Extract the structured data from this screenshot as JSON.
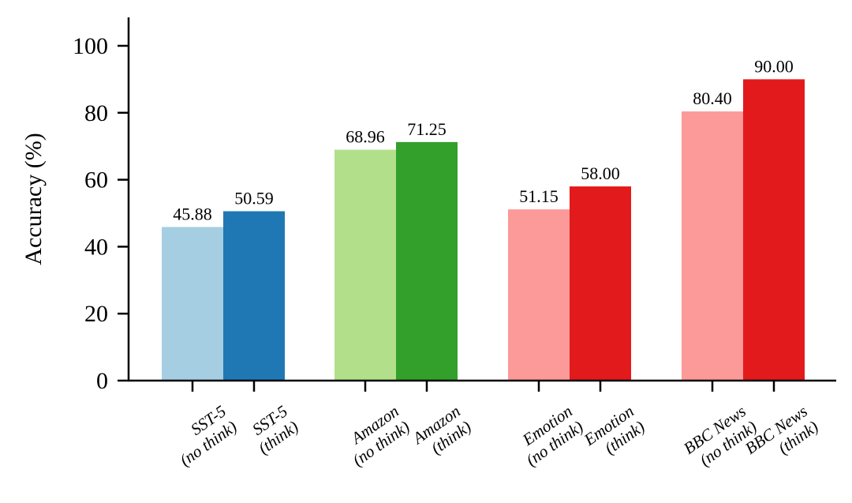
{
  "chart_data": {
    "type": "bar",
    "title": "",
    "xlabel": "",
    "ylabel": "Accuracy (%)",
    "ylim": [
      0,
      105
    ],
    "yticks": [
      0,
      20,
      40,
      60,
      80,
      100
    ],
    "grid": false,
    "legend": "none",
    "bars": [
      {
        "label_line1": "SST-5",
        "label_line2": "(no think)",
        "value": 45.88,
        "value_label": "45.88",
        "color": "#a6cee3"
      },
      {
        "label_line1": "SST-5",
        "label_line2": "(think)",
        "value": 50.59,
        "value_label": "50.59",
        "color": "#1f78b4"
      },
      {
        "label_line1": "Amazon",
        "label_line2": "(no think)",
        "value": 68.96,
        "value_label": "68.96",
        "color": "#b2df8a"
      },
      {
        "label_line1": "Amazon",
        "label_line2": "(think)",
        "value": 71.25,
        "value_label": "71.25",
        "color": "#33a02c"
      },
      {
        "label_line1": "Emotion",
        "label_line2": "(no think)",
        "value": 51.15,
        "value_label": "51.15",
        "color": "#fb9a99"
      },
      {
        "label_line1": "Emotion",
        "label_line2": "(think)",
        "value": 58.0,
        "value_label": "58.00",
        "color": "#e31a1c"
      },
      {
        "label_line1": "BBC News",
        "label_line2": "(no think)",
        "value": 80.4,
        "value_label": "80.40",
        "color": "#fb9a99"
      },
      {
        "label_line1": "BBC News",
        "label_line2": "(think)",
        "value": 90.0,
        "value_label": "90.00",
        "color": "#e31a1c"
      }
    ]
  }
}
